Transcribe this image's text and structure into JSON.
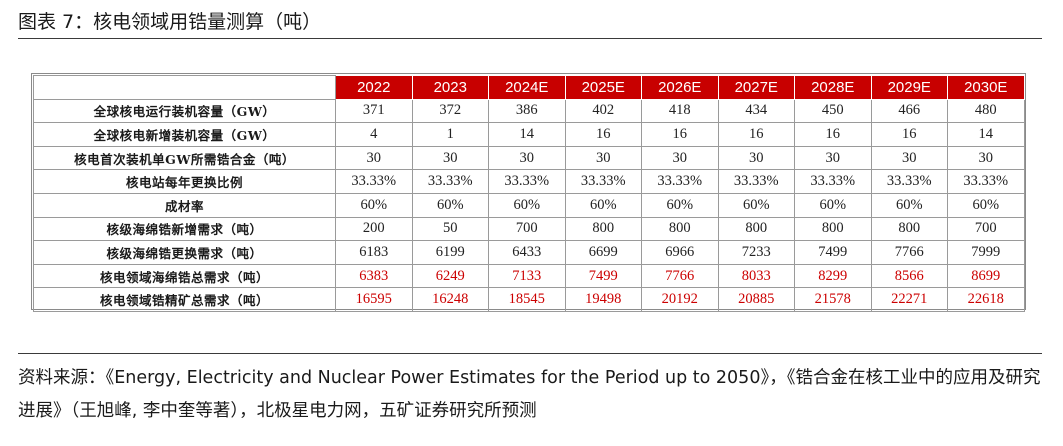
{
  "figure": {
    "title": "图表 7：核电领域用锆量测算（吨）"
  },
  "table": {
    "years": [
      "2022",
      "2023",
      "2024E",
      "2025E",
      "2026E",
      "2027E",
      "2028E",
      "2029E",
      "2030E"
    ],
    "rows": [
      {
        "label": "全球核电运行装机容量（GW）",
        "values": [
          "371",
          "372",
          "386",
          "402",
          "418",
          "434",
          "450",
          "466",
          "480"
        ]
      },
      {
        "label": "全球核电新增装机容量（GW）",
        "values": [
          "4",
          "1",
          "14",
          "16",
          "16",
          "16",
          "16",
          "16",
          "14"
        ]
      },
      {
        "label": "核电首次装机单GW所需锆合金（吨）",
        "values": [
          "30",
          "30",
          "30",
          "30",
          "30",
          "30",
          "30",
          "30",
          "30"
        ]
      },
      {
        "label": "核电站每年更换比例",
        "values": [
          "33.33%",
          "33.33%",
          "33.33%",
          "33.33%",
          "33.33%",
          "33.33%",
          "33.33%",
          "33.33%",
          "33.33%"
        ]
      },
      {
        "label": "成材率",
        "values": [
          "60%",
          "60%",
          "60%",
          "60%",
          "60%",
          "60%",
          "60%",
          "60%",
          "60%"
        ]
      },
      {
        "label": "核级海绵锆新增需求（吨）",
        "values": [
          "200",
          "50",
          "700",
          "800",
          "800",
          "800",
          "800",
          "800",
          "700"
        ]
      },
      {
        "label": "核级海绵锆更换需求（吨）",
        "values": [
          "6183",
          "6199",
          "6433",
          "6699",
          "6966",
          "7233",
          "7499",
          "7766",
          "7999"
        ]
      },
      {
        "label": "核电领域海绵锆总需求（吨）",
        "values": [
          "6383",
          "6249",
          "7133",
          "7499",
          "7766",
          "8033",
          "8299",
          "8566",
          "8699"
        ]
      },
      {
        "label": "核电领域锆精矿总需求（吨）",
        "values": [
          "16595",
          "16248",
          "18545",
          "19498",
          "20192",
          "20885",
          "21578",
          "22271",
          "22618"
        ]
      }
    ],
    "header_color": "#c80000",
    "highlight_text_color": "#cc0000"
  },
  "source": {
    "text": "资料来源：《Energy, Electricity and Nuclear Power Estimates for the Period up to 2050》，《锆合金在核工业中的应用及研究进展》（王旭峰, 李中奎等著），北极星电力网，五矿证券研究所预测"
  }
}
